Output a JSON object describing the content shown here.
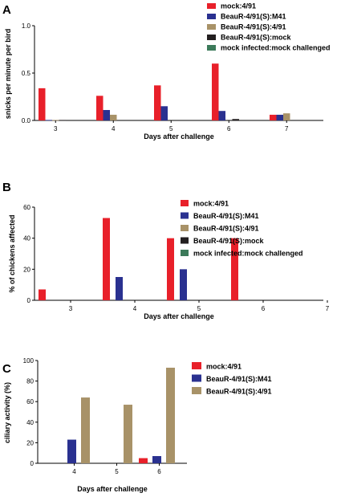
{
  "chart_data": [
    {
      "type": "bar",
      "panel_label": "A",
      "ylabel": "snicks per minute per bird",
      "xlabel": "Days after challenge",
      "categories": [
        "3",
        "4",
        "5",
        "6",
        "7"
      ],
      "yticks": [
        "0.0",
        "0.5",
        "1.0"
      ],
      "ylim": [
        0,
        1.0
      ],
      "legend_position": "top-right",
      "series": [
        {
          "name": "mock:4/91",
          "color": "#e8202a",
          "values": [
            0.34,
            0.26,
            0.37,
            0.6,
            0.06
          ]
        },
        {
          "name": "BeauR-4/91(S):M41",
          "color": "#2a3190",
          "values": [
            0.005,
            0.11,
            0.15,
            0.1,
            0.06
          ]
        },
        {
          "name": "BeauR-4/91(S):4/91",
          "color": "#a89268",
          "values": [
            0.005,
            0.06,
            0,
            0,
            0.075
          ]
        },
        {
          "name": "BeauR-4/91(S):mock",
          "color": "#231f20",
          "values": [
            0.005,
            0,
            0,
            0.015,
            0
          ]
        },
        {
          "name": "mock infected:mock challenged",
          "color": "#3c7a5a",
          "values": [
            0,
            0,
            0,
            0,
            0
          ]
        }
      ]
    },
    {
      "type": "bar",
      "panel_label": "B",
      "ylabel": "% of chickens affected",
      "xlabel": "Days after challenge",
      "categories": [
        "3",
        "4",
        "5",
        "6",
        "7"
      ],
      "yticks": [
        "0",
        "20",
        "40",
        "60"
      ],
      "ylim": [
        0,
        60
      ],
      "legend_position": "top-right",
      "series": [
        {
          "name": "mock:4/91",
          "color": "#e8202a",
          "values": [
            7,
            53,
            40,
            40,
            0
          ]
        },
        {
          "name": "BeauR-4/91(S):M41",
          "color": "#2a3190",
          "values": [
            0,
            15,
            20,
            0,
            0
          ]
        },
        {
          "name": "BeauR-4/91(S):4/91",
          "color": "#a89268",
          "values": [
            0,
            0,
            0,
            0,
            0
          ]
        },
        {
          "name": "BeauR-4/91(S):mock",
          "color": "#231f20",
          "values": [
            0,
            0,
            0,
            0,
            0
          ]
        },
        {
          "name": "mock infected:mock challenged",
          "color": "#3c7a5a",
          "values": [
            0,
            0,
            0,
            0,
            0
          ]
        }
      ]
    },
    {
      "type": "bar",
      "panel_label": "C",
      "ylabel": "ciliary activity (%)",
      "xlabel": "Days after challenge",
      "categories": [
        "4",
        "5",
        "6"
      ],
      "yticks": [
        "0",
        "20",
        "40",
        "60",
        "80",
        "100"
      ],
      "ylim": [
        0,
        100
      ],
      "legend_position": "top-right",
      "series": [
        {
          "name": "mock:4/91",
          "color": "#e8202a",
          "values": [
            0,
            0,
            5
          ]
        },
        {
          "name": "BeauR-4/91(S):M41",
          "color": "#2a3190",
          "values": [
            23,
            0,
            7
          ]
        },
        {
          "name": "BeauR-4/91(S):4/91",
          "color": "#a89268",
          "values": [
            64,
            57,
            93
          ]
        }
      ]
    }
  ]
}
